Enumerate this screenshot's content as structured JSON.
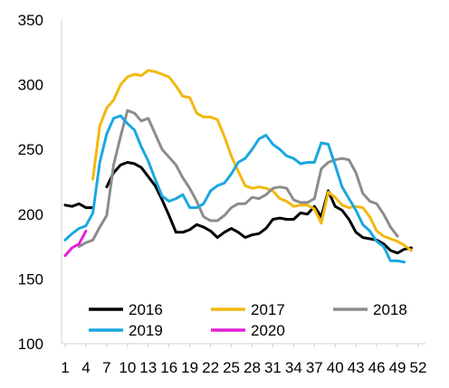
{
  "chart_data": {
    "type": "line",
    "title": "",
    "xlabel": "",
    "ylabel": "",
    "xlim": [
      1,
      52
    ],
    "ylim": [
      100,
      350
    ],
    "x_ticks": [
      1,
      4,
      7,
      10,
      13,
      16,
      19,
      22,
      25,
      28,
      31,
      34,
      37,
      40,
      43,
      46,
      49,
      52
    ],
    "y_ticks": [
      100,
      150,
      200,
      250,
      300,
      350
    ],
    "grid": false,
    "legend_position": "bottom",
    "series": [
      {
        "name": "2016",
        "color": "#000000",
        "points": [
          [
            1,
            207
          ],
          [
            2,
            206
          ],
          [
            3,
            208
          ],
          [
            4,
            205
          ],
          [
            5,
            205
          ],
          [
            6,
            null
          ],
          [
            7,
            221
          ],
          [
            8,
            232
          ],
          [
            9,
            238
          ],
          [
            10,
            240
          ],
          [
            11,
            239
          ],
          [
            12,
            236
          ],
          [
            13,
            229
          ],
          [
            14,
            222
          ],
          [
            15,
            211
          ],
          [
            16,
            199
          ],
          [
            17,
            186
          ],
          [
            18,
            186
          ],
          [
            19,
            188
          ],
          [
            20,
            192
          ],
          [
            21,
            190
          ],
          [
            22,
            187
          ],
          [
            23,
            182
          ],
          [
            24,
            186
          ],
          [
            25,
            189
          ],
          [
            26,
            186
          ],
          [
            27,
            182
          ],
          [
            28,
            184
          ],
          [
            29,
            185
          ],
          [
            30,
            189
          ],
          [
            31,
            196
          ],
          [
            32,
            197
          ],
          [
            33,
            196
          ],
          [
            34,
            196
          ],
          [
            35,
            201
          ],
          [
            36,
            200
          ],
          [
            37,
            206
          ],
          [
            38,
            198
          ],
          [
            39,
            218
          ],
          [
            40,
            206
          ],
          [
            41,
            203
          ],
          [
            42,
            196
          ],
          [
            43,
            186
          ],
          [
            44,
            182
          ],
          [
            45,
            181
          ],
          [
            46,
            180
          ],
          [
            47,
            177
          ],
          [
            48,
            172
          ],
          [
            49,
            170
          ],
          [
            50,
            173
          ],
          [
            51,
            174
          ]
        ]
      },
      {
        "name": "2017",
        "color": "#F2B80F",
        "points": [
          [
            1,
            null
          ],
          [
            2,
            null
          ],
          [
            3,
            null
          ],
          [
            4,
            null
          ],
          [
            5,
            227
          ],
          [
            6,
            268
          ],
          [
            7,
            282
          ],
          [
            8,
            288
          ],
          [
            9,
            300
          ],
          [
            10,
            306
          ],
          [
            11,
            308
          ],
          [
            12,
            307
          ],
          [
            13,
            311
          ],
          [
            14,
            310
          ],
          [
            15,
            308
          ],
          [
            16,
            306
          ],
          [
            17,
            299
          ],
          [
            18,
            291
          ],
          [
            19,
            290
          ],
          [
            20,
            278
          ],
          [
            21,
            275
          ],
          [
            22,
            275
          ],
          [
            23,
            273
          ],
          [
            24,
            260
          ],
          [
            25,
            245
          ],
          [
            26,
            233
          ],
          [
            27,
            222
          ],
          [
            28,
            220
          ],
          [
            29,
            221
          ],
          [
            30,
            220
          ],
          [
            31,
            218
          ],
          [
            32,
            212
          ],
          [
            33,
            210
          ],
          [
            34,
            206
          ],
          [
            35,
            207
          ],
          [
            36,
            207
          ],
          [
            37,
            204
          ],
          [
            38,
            193
          ],
          [
            39,
            217
          ],
          [
            40,
            213
          ],
          [
            41,
            207
          ],
          [
            42,
            205
          ],
          [
            43,
            206
          ],
          [
            44,
            205
          ],
          [
            45,
            198
          ],
          [
            46,
            187
          ],
          [
            47,
            183
          ],
          [
            48,
            181
          ],
          [
            49,
            179
          ],
          [
            50,
            176
          ],
          [
            51,
            172
          ]
        ]
      },
      {
        "name": "2018",
        "color": "#8C8C8C",
        "points": [
          [
            1,
            null
          ],
          [
            2,
            null
          ],
          [
            3,
            175
          ],
          [
            4,
            178
          ],
          [
            5,
            180
          ],
          [
            6,
            190
          ],
          [
            7,
            199
          ],
          [
            8,
            238
          ],
          [
            9,
            260
          ],
          [
            10,
            280
          ],
          [
            11,
            278
          ],
          [
            12,
            272
          ],
          [
            13,
            274
          ],
          [
            14,
            262
          ],
          [
            15,
            250
          ],
          [
            16,
            244
          ],
          [
            17,
            238
          ],
          [
            18,
            228
          ],
          [
            19,
            220
          ],
          [
            20,
            210
          ],
          [
            21,
            198
          ],
          [
            22,
            195
          ],
          [
            23,
            195
          ],
          [
            24,
            199
          ],
          [
            25,
            205
          ],
          [
            26,
            208
          ],
          [
            27,
            208
          ],
          [
            28,
            213
          ],
          [
            29,
            212
          ],
          [
            30,
            215
          ],
          [
            31,
            220
          ],
          [
            32,
            221
          ],
          [
            33,
            220
          ],
          [
            34,
            211
          ],
          [
            35,
            209
          ],
          [
            36,
            209
          ],
          [
            37,
            212
          ],
          [
            38,
            235
          ],
          [
            39,
            240
          ],
          [
            40,
            242
          ],
          [
            41,
            243
          ],
          [
            42,
            242
          ],
          [
            43,
            232
          ],
          [
            44,
            216
          ],
          [
            45,
            210
          ],
          [
            46,
            208
          ],
          [
            47,
            200
          ],
          [
            48,
            190
          ],
          [
            49,
            183
          ]
        ]
      },
      {
        "name": "2019",
        "color": "#1BA7E0",
        "points": [
          [
            1,
            180
          ],
          [
            2,
            185
          ],
          [
            3,
            189
          ],
          [
            4,
            191
          ],
          [
            5,
            201
          ],
          [
            6,
            240
          ],
          [
            7,
            262
          ],
          [
            8,
            274
          ],
          [
            9,
            276
          ],
          [
            10,
            270
          ],
          [
            11,
            265
          ],
          [
            12,
            252
          ],
          [
            13,
            241
          ],
          [
            14,
            227
          ],
          [
            15,
            214
          ],
          [
            16,
            210
          ],
          [
            17,
            212
          ],
          [
            18,
            215
          ],
          [
            19,
            205
          ],
          [
            20,
            205
          ],
          [
            21,
            208
          ],
          [
            22,
            218
          ],
          [
            23,
            222
          ],
          [
            24,
            224
          ],
          [
            25,
            231
          ],
          [
            26,
            240
          ],
          [
            27,
            243
          ],
          [
            28,
            250
          ],
          [
            29,
            258
          ],
          [
            30,
            261
          ],
          [
            31,
            254
          ],
          [
            32,
            250
          ],
          [
            33,
            245
          ],
          [
            34,
            243
          ],
          [
            35,
            239
          ],
          [
            36,
            240
          ],
          [
            37,
            240
          ],
          [
            38,
            255
          ],
          [
            39,
            254
          ],
          [
            40,
            238
          ],
          [
            41,
            221
          ],
          [
            42,
            212
          ],
          [
            43,
            203
          ],
          [
            44,
            192
          ],
          [
            45,
            187
          ],
          [
            46,
            179
          ],
          [
            47,
            175
          ],
          [
            48,
            164
          ],
          [
            49,
            164
          ],
          [
            50,
            163
          ]
        ]
      },
      {
        "name": "2020",
        "color": "#E51FD8",
        "points": [
          [
            1,
            168
          ],
          [
            2,
            174
          ],
          [
            3,
            177
          ],
          [
            4,
            187
          ]
        ]
      }
    ]
  }
}
